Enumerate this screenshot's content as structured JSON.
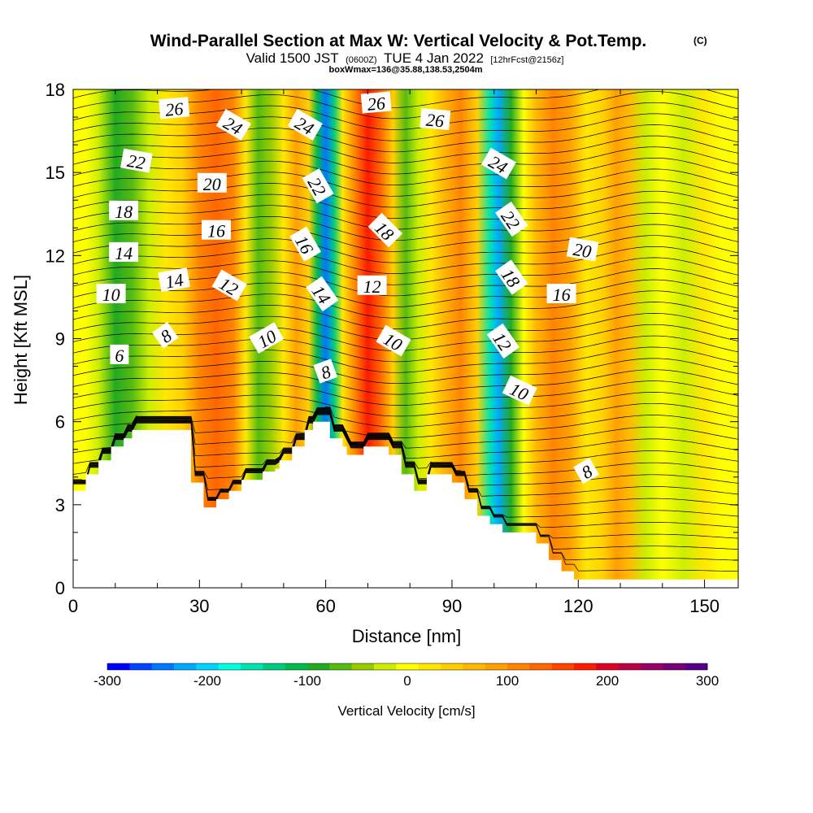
{
  "header": {
    "title": "Wind-Parallel Section at Max W: Vertical Velocity & Pot.Temp.",
    "copyright": "(C)",
    "valid_prefix": "Valid 1500 JST",
    "valid_utc": "(0600Z)",
    "valid_date": "TUE 4 Jan 2022",
    "forecast_info": "[12hrFcst@2156z]",
    "box_info": "boxWmax=136@35.88,138.53,2504m"
  },
  "colorbar": {
    "title": "Vertical Velocity [cm/s]",
    "tick_labels": [
      "-300",
      "-200",
      "-100",
      "0",
      "100",
      "200",
      "300"
    ],
    "tick_values": [
      -300,
      -200,
      -100,
      0,
      100,
      200,
      300
    ],
    "colors": [
      "#0000ff",
      "#0044ff",
      "#0077ff",
      "#00aaff",
      "#00d4ff",
      "#00ffe0",
      "#00e5b0",
      "#00cc80",
      "#00bb50",
      "#22aa22",
      "#55bb11",
      "#99cc00",
      "#ccee00",
      "#ffff00",
      "#ffe800",
      "#ffd000",
      "#ffb800",
      "#ff9f00",
      "#ff8400",
      "#ff6600",
      "#ff4400",
      "#ff1a00",
      "#dd0022",
      "#bb0044",
      "#990066",
      "#770077",
      "#550088"
    ],
    "range": [
      -300,
      300
    ]
  },
  "chart_data": {
    "type": "heatmap",
    "title": "Wind-Parallel Section at Max W: Vertical Velocity & Pot.Temp.",
    "xlabel": "Distance [nm]",
    "ylabel": "Height [Kft MSL]",
    "xlim": [
      0,
      158
    ],
    "ylim": [
      0,
      18
    ],
    "x_ticks": [
      0,
      30,
      60,
      90,
      120,
      150
    ],
    "x_tick_labels": [
      "0",
      "30",
      "60",
      "90",
      "120",
      "150"
    ],
    "y_ticks": [
      0,
      3,
      6,
      9,
      12,
      15,
      18
    ],
    "y_tick_labels": [
      "0",
      "3",
      "6",
      "9",
      "12",
      "15",
      "18"
    ],
    "field": "vertical_velocity_cm_s",
    "velocity_bands": [
      {
        "x": 0,
        "w": 0
      },
      {
        "x": 3,
        "w": 5
      },
      {
        "x": 6,
        "w": -30
      },
      {
        "x": 10,
        "w": -80
      },
      {
        "x": 14,
        "w": -60
      },
      {
        "x": 18,
        "w": -20
      },
      {
        "x": 22,
        "w": 20
      },
      {
        "x": 26,
        "w": 50
      },
      {
        "x": 30,
        "w": 100
      },
      {
        "x": 34,
        "w": 140
      },
      {
        "x": 38,
        "w": 120
      },
      {
        "x": 41,
        "w": 30
      },
      {
        "x": 44,
        "w": -70
      },
      {
        "x": 47,
        "w": -40
      },
      {
        "x": 50,
        "w": 30
      },
      {
        "x": 53,
        "w": 90
      },
      {
        "x": 56,
        "w": 40
      },
      {
        "x": 58,
        "w": -110
      },
      {
        "x": 60,
        "w": -250
      },
      {
        "x": 62,
        "w": -130
      },
      {
        "x": 64,
        "w": 20
      },
      {
        "x": 67,
        "w": 110
      },
      {
        "x": 70,
        "w": 180
      },
      {
        "x": 73,
        "w": 130
      },
      {
        "x": 76,
        "w": 40
      },
      {
        "x": 79,
        "w": -60
      },
      {
        "x": 82,
        "w": -30
      },
      {
        "x": 85,
        "w": 20
      },
      {
        "x": 88,
        "w": 60
      },
      {
        "x": 92,
        "w": 110
      },
      {
        "x": 96,
        "w": 40
      },
      {
        "x": 99,
        "w": -150
      },
      {
        "x": 101,
        "w": -220
      },
      {
        "x": 104,
        "w": -100
      },
      {
        "x": 107,
        "w": 10
      },
      {
        "x": 110,
        "w": 60
      },
      {
        "x": 114,
        "w": 100
      },
      {
        "x": 118,
        "w": 80
      },
      {
        "x": 122,
        "w": 30
      },
      {
        "x": 126,
        "w": 40
      },
      {
        "x": 129,
        "w": 80
      },
      {
        "x": 132,
        "w": 60
      },
      {
        "x": 136,
        "w": -20
      },
      {
        "x": 140,
        "w": 10
      },
      {
        "x": 145,
        "w": -20
      },
      {
        "x": 150,
        "w": 30
      },
      {
        "x": 154,
        "w": -10
      },
      {
        "x": 158,
        "w": 0
      }
    ],
    "terrain": [
      {
        "x": 0,
        "h": 3.5
      },
      {
        "x": 3,
        "h": 4.1
      },
      {
        "x": 6,
        "h": 4.6
      },
      {
        "x": 9,
        "h": 5.1
      },
      {
        "x": 12,
        "h": 5.4
      },
      {
        "x": 14,
        "h": 5.7
      },
      {
        "x": 27,
        "h": 5.7
      },
      {
        "x": 28,
        "h": 3.8
      },
      {
        "x": 30,
        "h": 3.8
      },
      {
        "x": 31,
        "h": 2.9
      },
      {
        "x": 34,
        "h": 3.2
      },
      {
        "x": 37,
        "h": 3.5
      },
      {
        "x": 40,
        "h": 3.9
      },
      {
        "x": 45,
        "h": 4.2
      },
      {
        "x": 48,
        "h": 4.3
      },
      {
        "x": 49,
        "h": 4.6
      },
      {
        "x": 52,
        "h": 5.1
      },
      {
        "x": 55,
        "h": 5.7
      },
      {
        "x": 57,
        "h": 6.0
      },
      {
        "x": 60,
        "h": 6.0
      },
      {
        "x": 61,
        "h": 5.4
      },
      {
        "x": 64,
        "h": 5.1
      },
      {
        "x": 65,
        "h": 4.8
      },
      {
        "x": 68,
        "h": 4.8
      },
      {
        "x": 69,
        "h": 5.1
      },
      {
        "x": 73,
        "h": 5.1
      },
      {
        "x": 75,
        "h": 4.8
      },
      {
        "x": 77,
        "h": 4.8
      },
      {
        "x": 78,
        "h": 4.1
      },
      {
        "x": 81,
        "h": 3.5
      },
      {
        "x": 84,
        "h": 4.1
      },
      {
        "x": 88,
        "h": 4.1
      },
      {
        "x": 90,
        "h": 3.8
      },
      {
        "x": 93,
        "h": 3.2
      },
      {
        "x": 96,
        "h": 2.6
      },
      {
        "x": 99,
        "h": 2.3
      },
      {
        "x": 102,
        "h": 2.0
      },
      {
        "x": 106,
        "h": 2.0
      },
      {
        "x": 110,
        "h": 1.6
      },
      {
        "x": 113,
        "h": 1.0
      },
      {
        "x": 116,
        "h": 0.6
      },
      {
        "x": 119,
        "h": 0.3
      },
      {
        "x": 158,
        "h": 0.3
      }
    ],
    "isentrope_count": 44,
    "contour_labels": [
      {
        "text": "26",
        "x": 24,
        "y": 17.3,
        "angle": -5
      },
      {
        "text": "24",
        "x": 38,
        "y": 16.7,
        "angle": 30
      },
      {
        "text": "24",
        "x": 55,
        "y": 16.7,
        "angle": 30
      },
      {
        "text": "26",
        "x": 72,
        "y": 17.5,
        "angle": -5
      },
      {
        "text": "26",
        "x": 86,
        "y": 16.9,
        "angle": 5
      },
      {
        "text": "22",
        "x": 15,
        "y": 15.4,
        "angle": 10
      },
      {
        "text": "20",
        "x": 33,
        "y": 14.6,
        "angle": 0
      },
      {
        "text": "22",
        "x": 58,
        "y": 14.5,
        "angle": 60
      },
      {
        "text": "24",
        "x": 101,
        "y": 15.3,
        "angle": 30
      },
      {
        "text": "18",
        "x": 12,
        "y": 13.6,
        "angle": 0
      },
      {
        "text": "16",
        "x": 34,
        "y": 12.9,
        "angle": 0
      },
      {
        "text": "16",
        "x": 55,
        "y": 12.4,
        "angle": 60
      },
      {
        "text": "18",
        "x": 74,
        "y": 12.9,
        "angle": 45
      },
      {
        "text": "22",
        "x": 104,
        "y": 13.3,
        "angle": 55
      },
      {
        "text": "20",
        "x": 121,
        "y": 12.2,
        "angle": 10
      },
      {
        "text": "14",
        "x": 12,
        "y": 12.1,
        "angle": 0
      },
      {
        "text": "14",
        "x": 24,
        "y": 11.1,
        "angle": -10
      },
      {
        "text": "12",
        "x": 37,
        "y": 10.9,
        "angle": 30
      },
      {
        "text": "14",
        "x": 59,
        "y": 10.6,
        "angle": 55
      },
      {
        "text": "12",
        "x": 71,
        "y": 10.9,
        "angle": 0
      },
      {
        "text": "18",
        "x": 104,
        "y": 11.2,
        "angle": 55
      },
      {
        "text": "16",
        "x": 116,
        "y": 10.6,
        "angle": 0
      },
      {
        "text": "10",
        "x": 9,
        "y": 10.6,
        "angle": 0
      },
      {
        "text": "8",
        "x": 22,
        "y": 9.1,
        "angle": -35
      },
      {
        "text": "10",
        "x": 46,
        "y": 9.0,
        "angle": -30
      },
      {
        "text": "10",
        "x": 76,
        "y": 8.9,
        "angle": 30
      },
      {
        "text": "12",
        "x": 102,
        "y": 8.9,
        "angle": 55
      },
      {
        "text": "6",
        "x": 11,
        "y": 8.4,
        "angle": 0
      },
      {
        "text": "8",
        "x": 60,
        "y": 7.8,
        "angle": -20
      },
      {
        "text": "10",
        "x": 106,
        "y": 7.1,
        "angle": 25
      },
      {
        "text": "8",
        "x": 122,
        "y": 4.2,
        "angle": -30
      }
    ]
  }
}
